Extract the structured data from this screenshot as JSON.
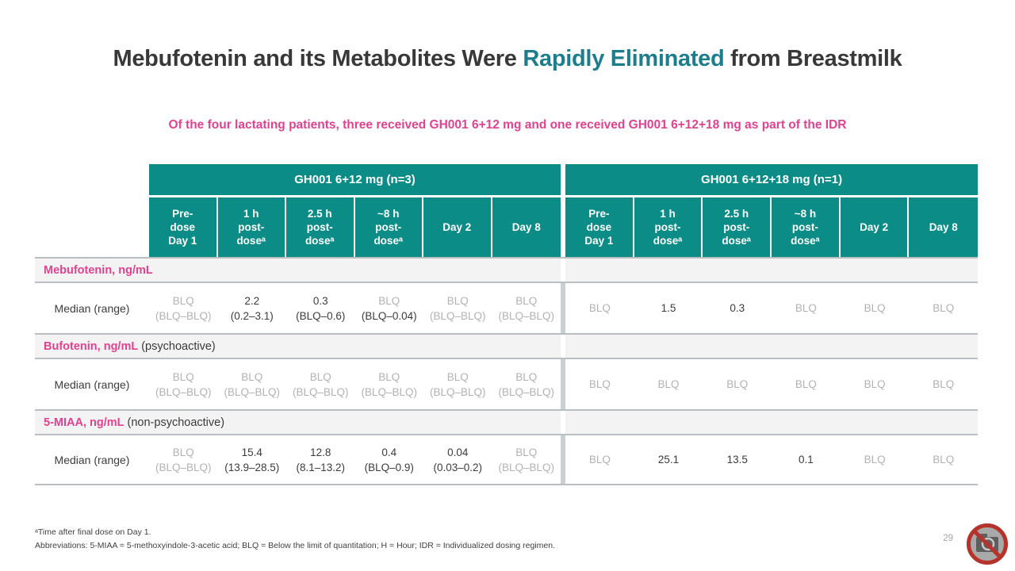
{
  "slide": {
    "title": {
      "pre": "Mebufotenin and its Metabolites Were ",
      "highlight": "Rapidly Eliminated",
      "post": " from Breastmilk"
    },
    "subtitle": "Of the four lactating patients, three received GH001 6+12 mg and one received GH001 6+12+18 mg as part of the IDR",
    "page_number": "29"
  },
  "table": {
    "groups": [
      "GH001 6+12 mg (n=3)",
      "GH001 6+12+18 mg (n=1)"
    ],
    "subheaders": [
      "Pre-\ndose\nDay 1",
      "1 h\npost-\ndoseᵃ",
      "2.5 h\npost-\ndoseᵃ",
      "~8 h\npost-\ndoseᵃ",
      "Day 2",
      "Day 8"
    ],
    "row_label": "Median (range)",
    "sections": [
      {
        "label": "Mebufotenin, ng/mL",
        "suffix": "",
        "left": [
          {
            "v": "BLQ",
            "g": true,
            "r": "(BLQ–BLQ)",
            "rg": true
          },
          {
            "v": "2.2",
            "g": false,
            "r": "(0.2–3.1)",
            "rg": false
          },
          {
            "v": "0.3",
            "g": false,
            "r": "(BLQ–0.6)",
            "rg": false
          },
          {
            "v": "BLQ",
            "g": true,
            "r": "(BLQ–0.04)",
            "rg": false
          },
          {
            "v": "BLQ",
            "g": true,
            "r": "(BLQ–BLQ)",
            "rg": true
          },
          {
            "v": "BLQ",
            "g": true,
            "r": "(BLQ–BLQ)",
            "rg": true
          }
        ],
        "right": [
          {
            "v": "BLQ",
            "g": true
          },
          {
            "v": "1.5",
            "g": false
          },
          {
            "v": "0.3",
            "g": false
          },
          {
            "v": "BLQ",
            "g": true
          },
          {
            "v": "BLQ",
            "g": true
          },
          {
            "v": "BLQ",
            "g": true
          }
        ]
      },
      {
        "label": "Bufotenin, ng/mL",
        "suffix": " (psychoactive)",
        "left": [
          {
            "v": "BLQ",
            "g": true,
            "r": "(BLQ–BLQ)",
            "rg": true
          },
          {
            "v": "BLQ",
            "g": true,
            "r": "(BLQ–BLQ)",
            "rg": true
          },
          {
            "v": "BLQ",
            "g": true,
            "r": "(BLQ–BLQ)",
            "rg": true
          },
          {
            "v": "BLQ",
            "g": true,
            "r": "(BLQ–BLQ)",
            "rg": true
          },
          {
            "v": "BLQ",
            "g": true,
            "r": "(BLQ–BLQ)",
            "rg": true
          },
          {
            "v": "BLQ",
            "g": true,
            "r": "(BLQ–BLQ)",
            "rg": true
          }
        ],
        "right": [
          {
            "v": "BLQ",
            "g": true
          },
          {
            "v": "BLQ",
            "g": true
          },
          {
            "v": "BLQ",
            "g": true
          },
          {
            "v": "BLQ",
            "g": true
          },
          {
            "v": "BLQ",
            "g": true
          },
          {
            "v": "BLQ",
            "g": true
          }
        ]
      },
      {
        "label": "5-MIAA, ng/mL",
        "suffix": " (non-psychoactive)",
        "left": [
          {
            "v": "BLQ",
            "g": true,
            "r": "(BLQ–BLQ)",
            "rg": true
          },
          {
            "v": "15.4",
            "g": false,
            "r": "(13.9–28.5)",
            "rg": false
          },
          {
            "v": "12.8",
            "g": false,
            "r": "(8.1–13.2)",
            "rg": false
          },
          {
            "v": "0.4",
            "g": false,
            "r": "(BLQ–0.9)",
            "rg": false
          },
          {
            "v": "0.04",
            "g": false,
            "r": "(0.03–0.2)",
            "rg": false
          },
          {
            "v": "BLQ",
            "g": true,
            "r": "(BLQ–BLQ)",
            "rg": true
          }
        ],
        "right": [
          {
            "v": "BLQ",
            "g": true
          },
          {
            "v": "25.1",
            "g": false
          },
          {
            "v": "13.5",
            "g": false
          },
          {
            "v": "0.1",
            "g": false
          },
          {
            "v": "BLQ",
            "g": true
          },
          {
            "v": "BLQ",
            "g": true
          }
        ]
      }
    ]
  },
  "footnotes": [
    "ᵃTime after final dose on Day 1.",
    "Abbreviations: 5-MIAA = 5-methoxyindole-3-acetic acid; BLQ = Below the limit of quantitation; H = Hour; IDR = Individualized dosing regimen."
  ],
  "colors": {
    "teal_header": "#0b8c87",
    "title_accent": "#1c7d8c",
    "pink_accent": "#e0428f",
    "muted_value": "#b2b2b2",
    "dark_text": "#3c3c3c",
    "section_bg": "#f3f3f3",
    "row_border": "#b9bec0",
    "group_divider": "#c9d0d5"
  }
}
